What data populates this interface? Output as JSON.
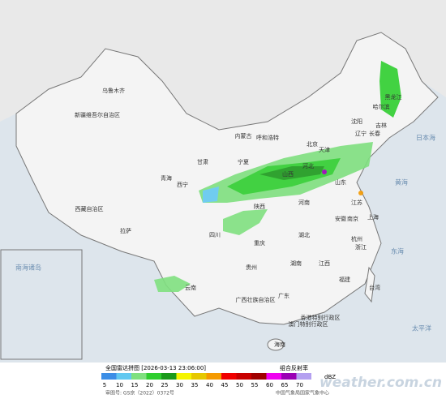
{
  "legend": {
    "title": "全国雷达拼图 [2026-03-13 23:06:00]",
    "product": "组合反射率",
    "unit": "dBZ",
    "values": [
      5,
      10,
      15,
      20,
      25,
      30,
      35,
      40,
      45,
      50,
      55,
      60,
      65,
      70
    ],
    "colors": [
      "#3c8ee6",
      "#62c8f0",
      "#7fe07f",
      "#2fce2f",
      "#1b9a1b",
      "#f5f500",
      "#e6c800",
      "#f59a00",
      "#f00000",
      "#c80000",
      "#a00000",
      "#f000f0",
      "#9a00b4",
      "#b4a0f0"
    ]
  },
  "footer": {
    "approval": "审图号: GS京（2022）0372号",
    "agency": "中国气象局国家气象中心",
    "watermark": "weather.com.cn"
  },
  "map": {
    "labels": [
      "新疆维吾尔自治区",
      "乌鲁木齐",
      "西藏自治区",
      "拉萨",
      "青海",
      "西宁",
      "内蒙古",
      "呼和浩特",
      "黑龙江",
      "哈尔滨",
      "吉林",
      "长春",
      "辽宁",
      "沈阳",
      "北京",
      "天津",
      "河北",
      "山西",
      "陕西",
      "甘肃",
      "宁夏",
      "山东",
      "河南",
      "湖北",
      "湖南",
      "江西",
      "安徽",
      "江苏",
      "南京",
      "上海",
      "浙江",
      "杭州",
      "福建",
      "台湾",
      "广东",
      "广西壮族自治区",
      "云南",
      "贵州",
      "四川",
      "重庆",
      "海南",
      "香港特别行政区",
      "澳门特别行政区"
    ],
    "seas": [
      "日本海",
      "黄海",
      "东海",
      "太平洋",
      "南海诸岛"
    ]
  }
}
